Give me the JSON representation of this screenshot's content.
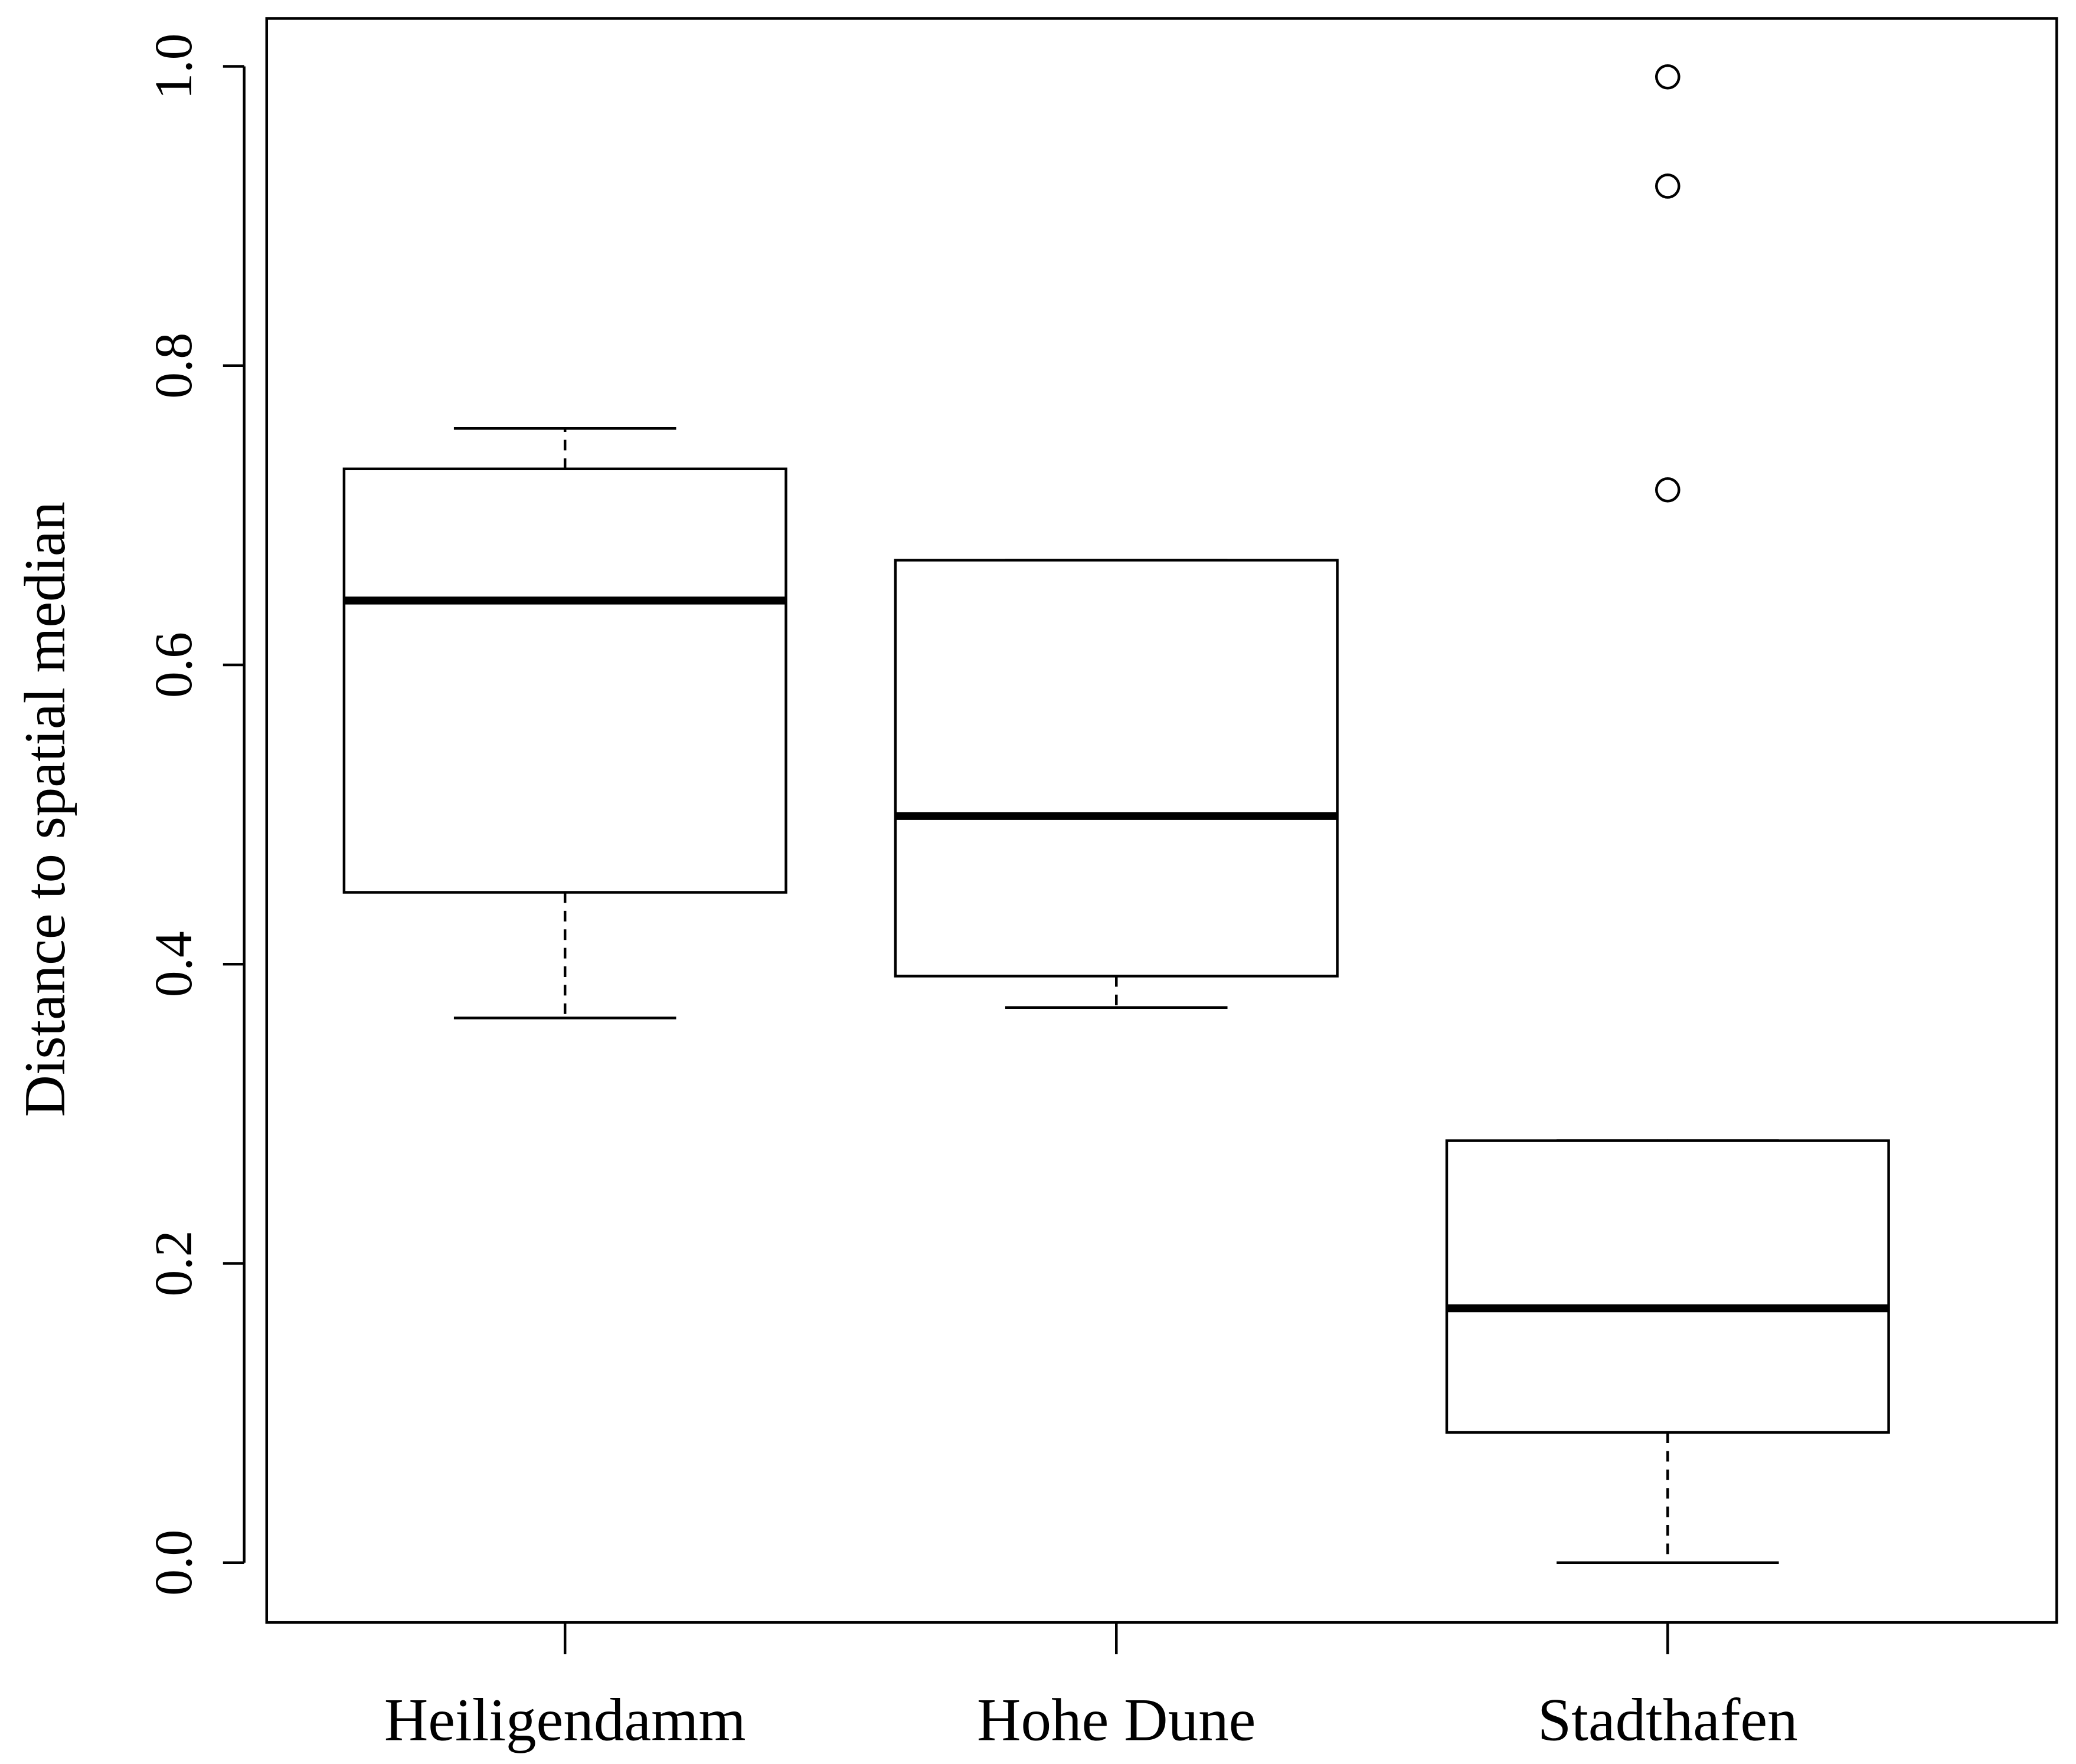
{
  "chart_data": {
    "type": "boxplot",
    "ylabel": "Distance to spatial median",
    "categories": [
      "Heiligendamm",
      "Hohe Dune",
      "Stadthafen"
    ],
    "boxes": [
      {
        "min": 0.364,
        "q1": 0.448,
        "median": 0.643,
        "q3": 0.731,
        "max": 0.758,
        "outliers": []
      },
      {
        "min": 0.371,
        "q1": 0.392,
        "median": 0.499,
        "q3": 0.67,
        "max": 0.67,
        "outliers": []
      },
      {
        "min": 0.0,
        "q1": 0.087,
        "median": 0.17,
        "q3": 0.282,
        "max": 0.282,
        "outliers": [
          0.993,
          0.92,
          0.717
        ]
      }
    ],
    "color": "#000000",
    "ylim": [
      -0.04,
      1.032
    ],
    "yticks": [
      {
        "value": 0,
        "label": "0.0"
      },
      0.2,
      0.4,
      0.6,
      0.8,
      {
        "value": 1,
        "label": "1.0"
      }
    ]
  }
}
